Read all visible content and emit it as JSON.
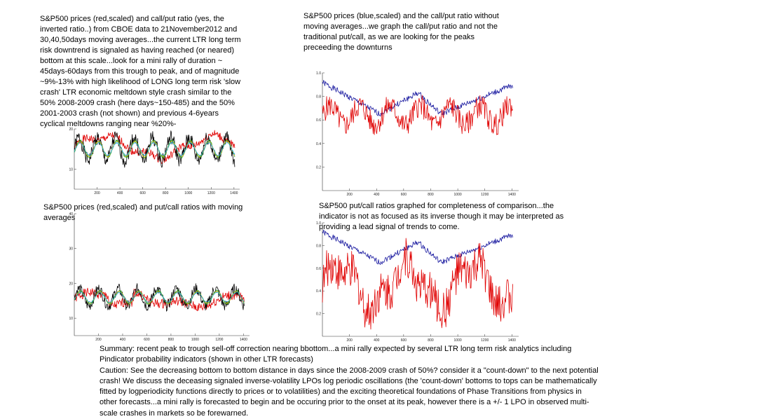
{
  "captions": {
    "tl": "S&P500 prices (red,scaled) and call/put ratio (yes, the\ninverted ratio..) from CBOE data to 21November2012 and\n30,40,50days moving averages...the current LTR long term\nrisk downtrend is signaled as having reached (or neared)\nbottom at this scale...look for a mini rally of duration ~\n45days-60days from this trough to peak, and of magnitude\n~9%-13% with high likelihood of LONG long term risk 'slow\ncrash' LTR economic meltdown style crash similar to the\n50% 2008-2009 crash (here days~150-485) and the 50%\n2001-2003 crash (not shown) and previous 4-6years\ncyclical meltdowns ranging near %20%-",
    "tr": "S&P500 prices (blue,scaled) and the call/put ratio without\nmoving averages...we graph the call/put ratio and not the\ntraditional put/call, as we are looking for the peaks\npreceeding the downturns",
    "bl": "S&P500 prices (red,scaled) and put/call ratios with moving\naverages",
    "br": "S&P500 put/call ratios graphed for completeness of comparison...the\nindicator is not as focused as its inverse though it may be interpreted as\nproviding a lead signal of trends to come.",
    "summary": "Summary: recent peak to trough sell-off correction nearing bbottom...a mini rally expected by several LTR long term risk analytics including\nPindicator probability indicators (shown in other LTR forecasts)\nCaution: See the decreasing bottom to bottom distance in days since the 2008-2009 crash of 50%? consider it a \"count-down\" to the next potential\ncrash! We discuss the deceasing signaled inverse-volatility LPOs log periodic oscillations (the 'count-down' bottoms to tops can be mathematically\nfitted by logperiodicity functions directly to prices or to volatilities) and the exciting theoretical foundations of Phase Transitions from physics in\nother forecasts...a mini rally is forecasted to begin and be occuring prior to the onset at its peak, however there is a +/- 1 LPO in observed multi-\nscale crashes in markets so be forewarned."
  },
  "colors": {
    "red": "#e00000",
    "blue": "#1a1aa0",
    "black": "#000000",
    "green": "#1f9e1f",
    "yellow": "#d4b000",
    "cyan": "#1ca6d8"
  },
  "chart_data": [
    {
      "id": "tl",
      "type": "line",
      "xlim": [
        0,
        1450
      ],
      "ylim": [
        5,
        20
      ],
      "xticks": [
        "200",
        "400",
        "600",
        "800",
        "1000",
        "1200",
        "1400"
      ],
      "yticks": [
        {
          "v": 20,
          "label": "20"
        },
        {
          "v": 10,
          "label": "10"
        }
      ],
      "series": [
        {
          "color": "red",
          "shape": "red",
          "base": 15.5,
          "amp": 2.5
        },
        {
          "color": "black",
          "shape": "osc",
          "base": 15.0,
          "amp": 4.0,
          "seed": 1
        },
        {
          "color": "green",
          "shape": "ma",
          "base": 15.0,
          "amp": 2.6,
          "seed": 2
        },
        {
          "color": "yellow",
          "shape": "ma",
          "base": 15.0,
          "amp": 2.3,
          "seed": 3
        },
        {
          "color": "cyan",
          "shape": "ma",
          "base": 15.0,
          "amp": 2.0,
          "seed": 4
        }
      ]
    },
    {
      "id": "tr",
      "type": "line",
      "xlim": [
        0,
        1450
      ],
      "ylim": [
        0,
        1.0
      ],
      "xticks": [
        "200",
        "400",
        "600",
        "800",
        "1000",
        "1200",
        "1400"
      ],
      "yticks": [
        {
          "v": 1.0,
          "label": "1.0"
        },
        {
          "v": 0.8,
          "label": "0.8"
        },
        {
          "v": 0.6,
          "label": "0.6"
        },
        {
          "v": 0.4,
          "label": "0.4"
        },
        {
          "v": 0.2,
          "label": "0.2"
        }
      ],
      "series": [
        {
          "color": "blue",
          "shape": "spx",
          "base": 0.0,
          "amp": 1.0
        },
        {
          "color": "red",
          "shape": "noisy",
          "base": 0.64,
          "amp": 0.14,
          "seed": 5
        }
      ]
    },
    {
      "id": "bl",
      "type": "line",
      "xlim": [
        0,
        1450
      ],
      "ylim": [
        5,
        40
      ],
      "xticks": [
        "200",
        "400",
        "600",
        "800",
        "1000",
        "1200",
        "1400"
      ],
      "yticks": [
        {
          "v": 40,
          "label": "40"
        },
        {
          "v": 30,
          "label": "30"
        },
        {
          "v": 20,
          "label": "20"
        },
        {
          "v": 10,
          "label": "10"
        }
      ],
      "series": [
        {
          "color": "red",
          "shape": "redlow",
          "base": 15.5,
          "amp": 3.0
        },
        {
          "color": "black",
          "shape": "osc",
          "base": 16.0,
          "amp": 3.5,
          "seed": 6
        },
        {
          "color": "green",
          "shape": "ma",
          "base": 16.0,
          "amp": 2.4,
          "seed": 7
        },
        {
          "color": "yellow",
          "shape": "ma",
          "base": 16.0,
          "amp": 2.1,
          "seed": 8
        },
        {
          "color": "cyan",
          "shape": "ma",
          "base": 16.0,
          "amp": 1.8,
          "seed": 9
        }
      ]
    },
    {
      "id": "br",
      "type": "line",
      "xlim": [
        0,
        1450
      ],
      "ylim": [
        0,
        1.0
      ],
      "xticks": [
        "200",
        "400",
        "600",
        "800",
        "1000",
        "1200",
        "1400"
      ],
      "yticks": [
        {
          "v": 1.0,
          "label": "1.0"
        },
        {
          "v": 0.8,
          "label": "0.8"
        },
        {
          "v": 0.6,
          "label": "0.6"
        },
        {
          "v": 0.4,
          "label": "0.4"
        },
        {
          "v": 0.2,
          "label": "0.2"
        }
      ],
      "series": [
        {
          "color": "blue",
          "shape": "spx",
          "base": 0.0,
          "amp": 1.0
        },
        {
          "color": "red",
          "shape": "pcr",
          "base": 0.45,
          "amp": 0.25,
          "seed": 10
        }
      ]
    }
  ]
}
